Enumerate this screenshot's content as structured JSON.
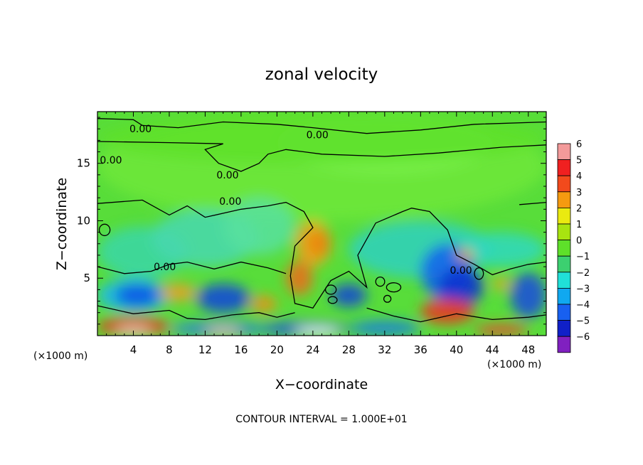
{
  "chart_data": {
    "type": "heatmap",
    "title": "zonal velocity",
    "xlabel": "X−coordinate",
    "ylabel": "Z−coordinate",
    "x_unit_left": "(×1000 m)",
    "x_unit_right": "(×1000 m)",
    "footer": "CONTOUR INTERVAL = 1.000E+01",
    "xlim": [
      0,
      50
    ],
    "ylim": [
      0,
      19.5
    ],
    "x_ticks": [
      4,
      8,
      12,
      16,
      20,
      24,
      28,
      32,
      36,
      40,
      44,
      48
    ],
    "x_tick_labels": [
      "4",
      "8",
      "12",
      "16",
      "20",
      "24",
      "28",
      "32",
      "36",
      "40",
      "44",
      "48"
    ],
    "y_ticks": [
      5,
      10,
      15
    ],
    "y_tick_labels": [
      "5",
      "10",
      "15"
    ],
    "colorbar": {
      "levels": [
        6,
        5,
        4,
        3,
        2,
        1,
        0,
        -1,
        -2,
        -3,
        -4,
        -5,
        -6
      ],
      "labels": [
        "6",
        "5",
        "4",
        "3",
        "2",
        "1",
        "0",
        "−1",
        "−2",
        "−3",
        "−4",
        "−5",
        "−6"
      ],
      "colors": [
        "#f39a9a",
        "#f02020",
        "#f24a1c",
        "#f59a10",
        "#eaea10",
        "#a8e410",
        "#5ee02a",
        "#3cd070",
        "#20e0d8",
        "#10a8f0",
        "#1860f0",
        "#1020c8",
        "#8020c0"
      ]
    },
    "contour_labels": [
      {
        "text": "0.00",
        "x": 4.8,
        "z": 18.0
      },
      {
        "text": "0.00",
        "x": 24.5,
        "z": 17.5
      },
      {
        "text": "0.00",
        "x": 1.5,
        "z": 15.3
      },
      {
        "text": "0.00",
        "x": 14.5,
        "z": 14.0
      },
      {
        "text": "0.00",
        "x": 14.8,
        "z": 11.7
      },
      {
        "text": "0.00",
        "x": 7.5,
        "z": 6.0
      },
      {
        "text": "0.00",
        "x": 40.5,
        "z": 5.7
      }
    ]
  }
}
